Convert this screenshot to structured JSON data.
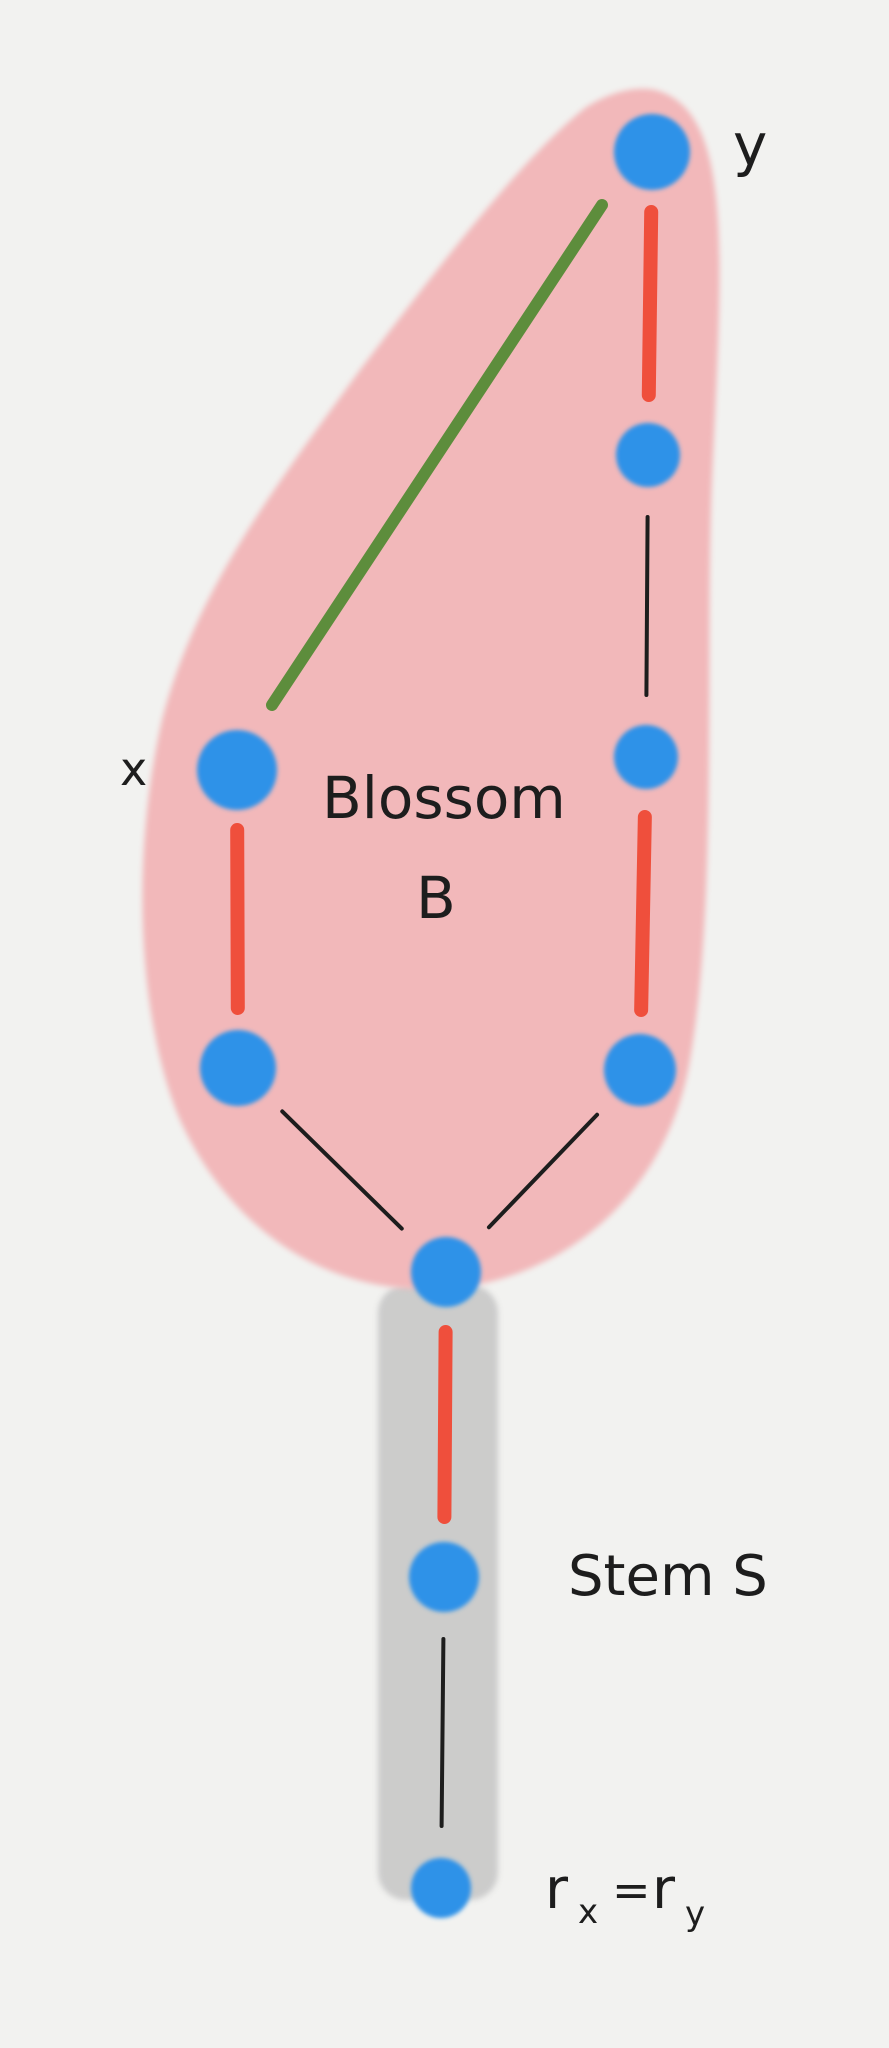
{
  "labels": {
    "vertex_x": "x",
    "vertex_y": "y",
    "blossom_line1": "Blossom",
    "blossom_line2": "B",
    "stem": "Stem S",
    "root_r": "r",
    "root_sub_x": "x",
    "root_eq": "=",
    "root_sub_y": "y"
  },
  "colors": {
    "background": "#f2f2f0",
    "blossom_fill": "#f2b8ba",
    "stem_fill": "#c8c8c8",
    "vertex": "#2f92e8",
    "matched_edge": "#ef4f3c",
    "unmatched_edge": "#1d1d1d",
    "xy_edge": "#5d8d3c"
  },
  "diagram": {
    "vertices": [
      {
        "id": "y"
      },
      {
        "id": "a"
      },
      {
        "id": "b"
      },
      {
        "id": "c"
      },
      {
        "id": "x"
      },
      {
        "id": "d"
      },
      {
        "id": "base"
      },
      {
        "id": "s1"
      },
      {
        "id": "root"
      }
    ],
    "edges": [
      {
        "from": "y",
        "to": "a",
        "kind": "matched"
      },
      {
        "from": "a",
        "to": "b",
        "kind": "unmatched"
      },
      {
        "from": "b",
        "to": "c",
        "kind": "matched"
      },
      {
        "from": "c",
        "to": "base",
        "kind": "unmatched"
      },
      {
        "from": "x",
        "to": "d",
        "kind": "matched"
      },
      {
        "from": "d",
        "to": "base",
        "kind": "unmatched"
      },
      {
        "from": "x",
        "to": "y",
        "kind": "xy"
      },
      {
        "from": "base",
        "to": "s1",
        "kind": "matched"
      },
      {
        "from": "s1",
        "to": "root",
        "kind": "unmatched"
      }
    ]
  }
}
